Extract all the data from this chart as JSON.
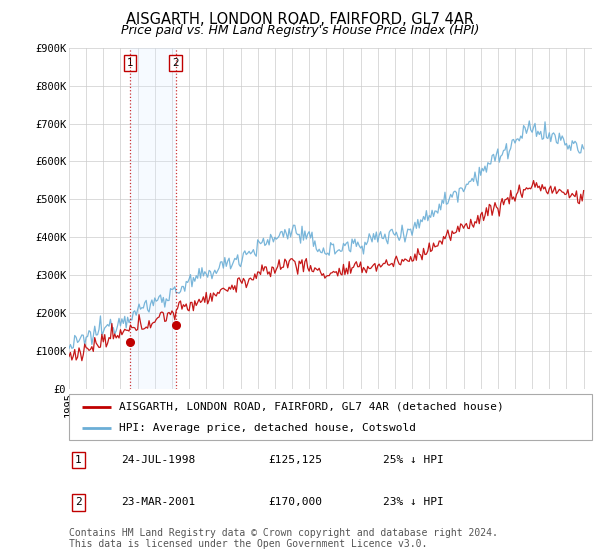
{
  "title": "AISGARTH, LONDON ROAD, FAIRFORD, GL7 4AR",
  "subtitle": "Price paid vs. HM Land Registry's House Price Index (HPI)",
  "ylim": [
    0,
    900000
  ],
  "xlim_start": 1995.0,
  "xlim_end": 2025.5,
  "grid_color": "#cccccc",
  "sale1_date": 1998.55,
  "sale1_price": 125125,
  "sale1_text": "24-JUL-1998",
  "sale1_pct": "25% ↓ HPI",
  "sale2_date": 2001.22,
  "sale2_price": 170000,
  "sale2_text": "23-MAR-2001",
  "sale2_pct": "23% ↓ HPI",
  "hpi_color": "#6baed6",
  "sale_color": "#c00000",
  "shade_color": "#ddeeff",
  "legend_label_sale": "AISGARTH, LONDON ROAD, FAIRFORD, GL7 4AR (detached house)",
  "legend_label_hpi": "HPI: Average price, detached house, Cotswold",
  "footer1": "Contains HM Land Registry data © Crown copyright and database right 2024.",
  "footer2": "This data is licensed under the Open Government Licence v3.0.",
  "title_fontsize": 10.5,
  "subtitle_fontsize": 9,
  "tick_fontsize": 7.5,
  "legend_fontsize": 8,
  "table_fontsize": 8,
  "footer_fontsize": 7
}
